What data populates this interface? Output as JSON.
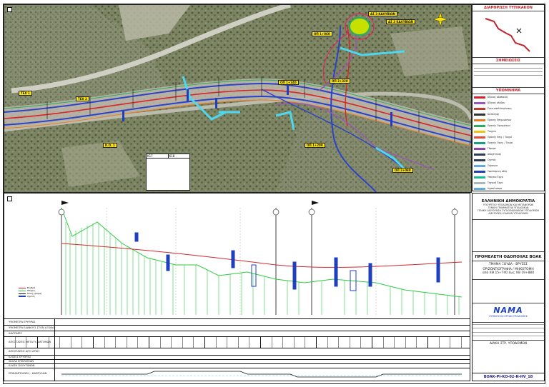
{
  "plan": {
    "key_map_title": "ΔΙΑΡΘΡΩΣΗ ΤΥΠΙΚΑΚΟΝ",
    "callouts": [
      "ΑΣ 3 ΚΑΛΥΒΙΩΝ",
      "ΑΣ 3 ΚΑΛΥΒΙΩΝ"
    ],
    "sheet_refs": [
      "K17",
      "K18"
    ],
    "yellow_tags": [
      "ΤΕΧ 1",
      "Κ.Ο. 1",
      "ΟΠ 1+240",
      "ΟΠ 1+860",
      "ΟΠ 1+200",
      "ΟΠ 2+080",
      "ΟΠ 2+320",
      "ΤΕΧ 2"
    ]
  },
  "legend": {
    "notes_title": "ΣΗΜΕΙΩΣΕΙΣ",
    "title": "ΥΠΟΜΝΗΜΑ",
    "items": [
      {
        "label": "Άξονας οδοποιίας",
        "color": "#d6262c"
      },
      {
        "label": "Άξονας κλάδου",
        "color": "#9b59b6"
      },
      {
        "label": "Όριο απαλλοτρίωσης",
        "color": "#c0392b"
      },
      {
        "label": "Κατάληψη",
        "color": "#333333"
      },
      {
        "label": "Πρανής Επιχωμάτων",
        "color": "#e67e22"
      },
      {
        "label": "Πρανής Ορυγμάτων",
        "color": "#27ae60"
      },
      {
        "label": "Τοιχεία",
        "color": "#f1c40f"
      },
      {
        "label": "Πρανής Επιχ. / Τοιχοί",
        "color": "#e74c3c"
      },
      {
        "label": "Πρανής Ορυγ. / Τοιχοί",
        "color": "#16a085"
      },
      {
        "label": "Γέφυρα",
        "color": "#8e44ad"
      },
      {
        "label": "Αποχέτευση",
        "color": "#2c3e50"
      },
      {
        "label": "Οχετός",
        "color": "#2c3e50"
      },
      {
        "label": "Σήραγγα",
        "color": "#5dade2"
      },
      {
        "label": "Υφιστάμενη οδός",
        "color": "#1f3fbf"
      },
      {
        "label": "Υπόγειο Έργο",
        "color": "#1abc9c"
      },
      {
        "label": "Τεχνικό Έργο",
        "color": "#aab7b8"
      },
      {
        "label": "Ηχοπέτασμα",
        "color": "#5dade2"
      },
      {
        "label": "Οριοθέτηση",
        "color": "#2e86c1"
      },
      {
        "label": "Ρέμα",
        "color": "#00bcd4"
      }
    ]
  },
  "title_block": {
    "republic": "ΕΛΛΗΝΙΚΗ ΔΗΜΟΚΡΑΤΙΑ",
    "ministry_lines": [
      "ΥΠΟΥΡΓΕΙΟ ΥΠΟΔΟΜΩΝ ΚΑΙ ΜΕΤΑΦΟΡΩΝ",
      "ΓΕΝΙΚΗ ΓΡΑΜΜΑΤΕΙΑ ΥΠΟΔΟΜΩΝ",
      "ΓΕΝΙΚΗ ΔΙΕΥΘΥΝΣΗ ΣΥΓΚΟΙΝΩΝΙΑΚΩΝ ΥΠΟΔΟΜΩΝ",
      "ΔΙΕΥΘΥΝΣΗ ΟΔΙΚΩΝ ΥΠΟΔΟΜΩΝ"
    ],
    "project_title": "ΠΡΟΜΕΛΕΤΗ ΟΔΟΠΟΙΙΑΣ ΒΟΑΚ",
    "section": "ΤΜΗΜΑ ΞΟΥΔΑ - ΒΡΥΣΕΣ",
    "drawing_title": "ΟΡΙΖΟΝΤΙΟΓΡΑΦΙΑ / ΜΗΚΟΤΟΜΗ",
    "chainage": "από ΧΘ 15+740 έως ΧΘ 19+880",
    "brand": "NAMA",
    "consultant": "ΣΥΜΒΟΥΛΟΙ ΕΡΓΩΝ ΥΠΟΔΟΜΗΣ",
    "drawing_code": "ΒΟΑΚ-ΡΙ-ΚΟ-02-Ν-ΗV_18",
    "agency": "ΔΙΑΚΗ ΣΤΡ. ΥΠΟΔΟΜΩΝ"
  },
  "profile": {
    "rows": [
      "ΥΨΟΜΕΤΡΑ ΕΡΥΘΡΑΣ",
      "ΥΨΟΜΕΤΡΑ ΕΔΑΦΟΥΣ ΣΤΟΝ ΑΞΟΝΑ",
      "ΔΙΑΤΟΜΕΣ",
      "ΑΠΟΣΤΑΣΕΙΣ ΜΕΤΑΞΥ ΔΙΑΤΟΜΩΝ",
      "ΑΠΟΣΤΑΣΕΙΣ ΑΠΟ ΑΡΧΗ",
      "ΚΛΙΣΕΙΣ ΕΡΥΘΡΑΣ",
      "ΣΚΑΛΑ ΕΠΙΚΛΙΣΕΩΝ",
      "ΚΛΑΣΗ ΠΟΛΥΓΩΝΩΝ",
      "ΕΠΙΚΑΜΠΥΛΩΣΗ - ΚΑΜΠΥΛΩΝ"
    ],
    "legend_items": [
      "Ερυθρά",
      "Έδαφος",
      "Μονή γραμμή",
      "Οχετός"
    ]
  }
}
